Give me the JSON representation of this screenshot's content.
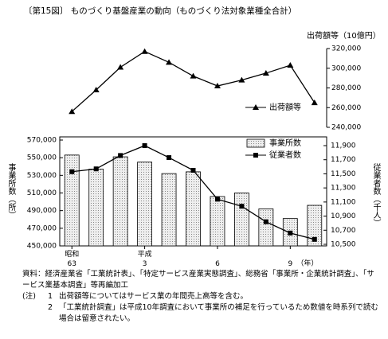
{
  "title": "〔第15図〕 ものづくり基盤産業の動向（ものづくり法対象業種全合計）",
  "chart_data": [
    {
      "type": "line",
      "categories": [
        null,
        null,
        null,
        null,
        null,
        null,
        null,
        null,
        null,
        null,
        null
      ],
      "y_label": "出荷額等（10億円）",
      "series": [
        {
          "name": "出荷額等",
          "color": "#000000",
          "marker": "triangle",
          "values": [
            256000,
            278000,
            301000,
            317000,
            306000,
            292000,
            282000,
            288000,
            295000,
            303000,
            265000
          ]
        }
      ],
      "ylim": [
        240000,
        320000
      ],
      "yticks": [
        {
          "value": 240000,
          "label": "240,000"
        },
        {
          "value": 260000,
          "label": "260,000"
        },
        {
          "value": 280000,
          "label": "280,000"
        },
        {
          "value": 300000,
          "label": "300,000"
        },
        {
          "value": 320000,
          "label": "320,000"
        }
      ]
    },
    {
      "type": "bar_line",
      "categories": [
        "昭和\n63",
        null,
        null,
        "平成\n3",
        null,
        null,
        "6",
        null,
        null,
        "9",
        null
      ],
      "x_unit": "（年）",
      "y_label": "事業所数（所）",
      "y2_label": "従業者数（千人）",
      "series": [
        {
          "name": "事業所数",
          "type": "bar",
          "color": "#d9d9d9",
          "values": [
            553000,
            537000,
            551000,
            545000,
            532000,
            534000,
            506000,
            510000,
            492000,
            481000,
            496000
          ]
        },
        {
          "name": "従業者数",
          "type": "line",
          "axis": "y2",
          "color": "#000000",
          "marker": "square",
          "values": [
            11530,
            11570,
            11760,
            11900,
            11730,
            11550,
            11140,
            11040,
            10820,
            10660,
            10570
          ]
        }
      ],
      "ylim": [
        450000,
        570000
      ],
      "yticks": [
        {
          "value": 450000,
          "label": "450,000"
        },
        {
          "value": 470000,
          "label": "470,000"
        },
        {
          "value": 490000,
          "label": "490,000"
        },
        {
          "value": 510000,
          "label": "510,000"
        },
        {
          "value": 530000,
          "label": "530,000"
        },
        {
          "value": 550000,
          "label": "550,000"
        },
        {
          "value": 570000,
          "label": "570,000"
        }
      ],
      "y2lim": [
        10500,
        11900
      ],
      "y2ticks": [
        {
          "value": 10500,
          "label": "10,500"
        },
        {
          "value": 10700,
          "label": "10,700"
        },
        {
          "value": 10900,
          "label": "10,900"
        },
        {
          "value": 11100,
          "label": "11,100"
        },
        {
          "value": 11300,
          "label": "11,300"
        },
        {
          "value": 11500,
          "label": "11,500"
        },
        {
          "value": 11700,
          "label": "11,700"
        },
        {
          "value": 11900,
          "label": "11,900"
        }
      ]
    }
  ],
  "notes": {
    "source": "資料：経済産業省「工業統計表」、「特定サービス産業実態調査」、総務省「事業所・企業統計調査」、「サービス業基本調査」等再編加工",
    "label": "(注)",
    "items": [
      {
        "number": "1",
        "text": "出荷額等についてはサービス業の年間売上高等を含む。"
      },
      {
        "number": "2",
        "text": "「工業統計調査」は平成10年調査において事業所の補足を行っているため数値を時系列で読む場合は留意されたい。"
      }
    ]
  }
}
